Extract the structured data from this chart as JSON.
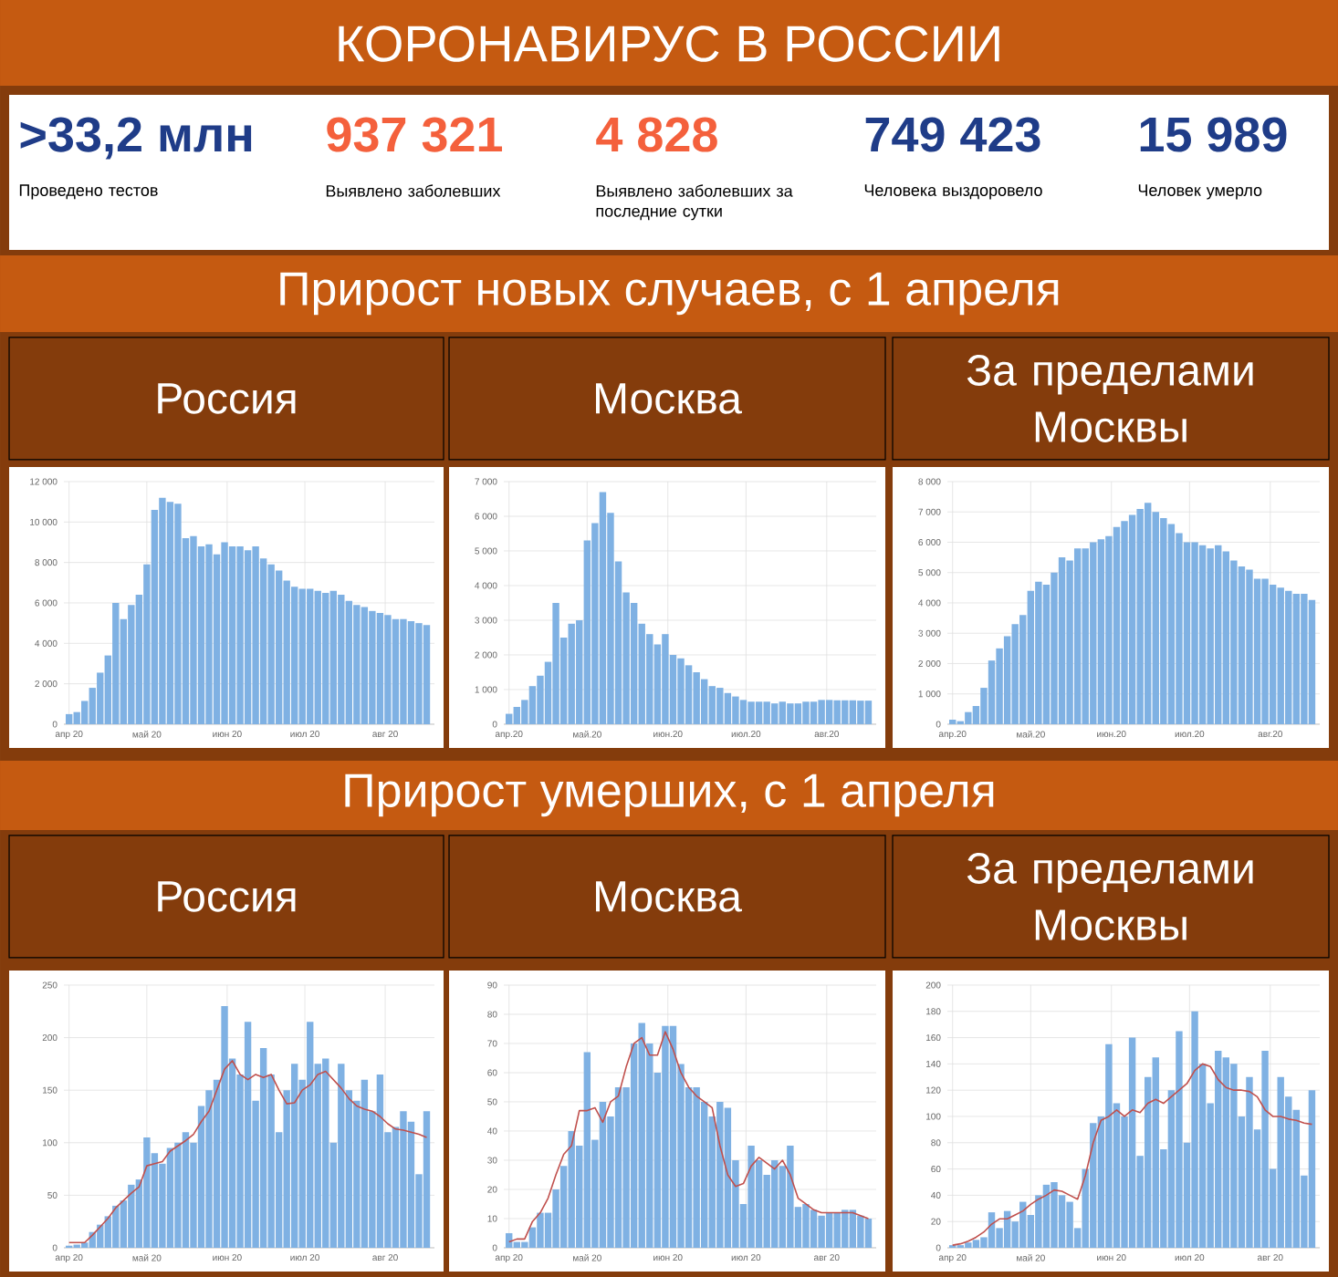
{
  "chart_data": [
    {
      "type": "other",
      "title": "КОРОНАВИРУС В РОССИИ",
      "categories": [
        "Проведено тестов",
        "Выявлено заболевших",
        "Выявлено заболевших за последние сутки",
        "Человека выздоровело",
        "Человек умерло"
      ],
      "value_labels": [
        ">33,2 млн",
        "937 321",
        "4 828",
        "749 423",
        "15 989"
      ],
      "colors": [
        "#1f3c88",
        "#f4603c",
        "#f4603c",
        "#1f3c88",
        "#1f3c88"
      ]
    },
    {
      "type": "bar",
      "title": "Россия",
      "subtitle": "Прирост новых случаев, с 1 апреля",
      "grid": true,
      "x": [
        "2020-04-01",
        "2020-04-04",
        "2020-04-07",
        "2020-04-10",
        "2020-04-13",
        "2020-04-16",
        "2020-04-19",
        "2020-04-22",
        "2020-04-25",
        "2020-04-28",
        "2020-05-01",
        "2020-05-04",
        "2020-05-07",
        "2020-05-10",
        "2020-05-13",
        "2020-05-16",
        "2020-05-19",
        "2020-05-22",
        "2020-05-25",
        "2020-05-28",
        "2020-05-31",
        "2020-06-03",
        "2020-06-06",
        "2020-06-09",
        "2020-06-12",
        "2020-06-15",
        "2020-06-18",
        "2020-06-21",
        "2020-06-24",
        "2020-06-27",
        "2020-06-30",
        "2020-07-03",
        "2020-07-06",
        "2020-07-09",
        "2020-07-12",
        "2020-07-15",
        "2020-07-18",
        "2020-07-21",
        "2020-07-24",
        "2020-07-27",
        "2020-07-30",
        "2020-08-02",
        "2020-08-05",
        "2020-08-08",
        "2020-08-11",
        "2020-08-14",
        "2020-08-17"
      ],
      "xlim": [
        "2020-03-30",
        "2020-08-20"
      ],
      "xticks": [
        {
          "value": "2020-04-01",
          "label": "апр 20"
        },
        {
          "value": "2020-05-01",
          "label": "май 20"
        },
        {
          "value": "2020-06-01",
          "label": "июн 20"
        },
        {
          "value": "2020-07-01",
          "label": "июл 20"
        },
        {
          "value": "2020-08-01",
          "label": "авг 20"
        }
      ],
      "ylim": [
        0,
        12000
      ],
      "yticks": [
        0,
        {
          "value": 2000,
          "label": "2 000"
        },
        {
          "value": 4000,
          "label": "4 000"
        },
        {
          "value": 6000,
          "label": "6 000"
        },
        {
          "value": 8000,
          "label": "8 000"
        },
        {
          "value": 10000,
          "label": "10 000"
        },
        {
          "value": 12000,
          "label": "12 000"
        }
      ],
      "series": [
        {
          "type": "bar",
          "color": "#7fb1e3",
          "values": [
            500,
            600,
            1150,
            1800,
            2550,
            3400,
            6000,
            5200,
            5900,
            6400,
            7900,
            10600,
            11200,
            11000,
            10900,
            9200,
            9300,
            8800,
            8900,
            8400,
            9000,
            8800,
            8800,
            8600,
            8800,
            8200,
            7900,
            7600,
            7100,
            6800,
            6700,
            6700,
            6600,
            6500,
            6600,
            6400,
            6100,
            5900,
            5800,
            5600,
            5500,
            5400,
            5200,
            5200,
            5100,
            5000,
            4900
          ]
        }
      ]
    },
    {
      "type": "bar",
      "title": "Москва",
      "grid": true,
      "x": [
        "2020-04-01",
        "2020-04-04",
        "2020-04-07",
        "2020-04-10",
        "2020-04-13",
        "2020-04-16",
        "2020-04-19",
        "2020-04-22",
        "2020-04-25",
        "2020-04-28",
        "2020-05-01",
        "2020-05-04",
        "2020-05-07",
        "2020-05-10",
        "2020-05-13",
        "2020-05-16",
        "2020-05-19",
        "2020-05-22",
        "2020-05-25",
        "2020-05-28",
        "2020-05-31",
        "2020-06-03",
        "2020-06-06",
        "2020-06-09",
        "2020-06-12",
        "2020-06-15",
        "2020-06-18",
        "2020-06-21",
        "2020-06-24",
        "2020-06-27",
        "2020-06-30",
        "2020-07-03",
        "2020-07-06",
        "2020-07-09",
        "2020-07-12",
        "2020-07-15",
        "2020-07-18",
        "2020-07-21",
        "2020-07-24",
        "2020-07-27",
        "2020-07-30",
        "2020-08-02",
        "2020-08-05",
        "2020-08-08",
        "2020-08-11",
        "2020-08-14",
        "2020-08-17"
      ],
      "xlim": [
        "2020-03-30",
        "2020-08-20"
      ],
      "xticks": [
        {
          "value": "2020-04-01",
          "label": "апр.20"
        },
        {
          "value": "2020-05-01",
          "label": "май.20"
        },
        {
          "value": "2020-06-01",
          "label": "июн.20"
        },
        {
          "value": "2020-07-01",
          "label": "июл.20"
        },
        {
          "value": "2020-08-01",
          "label": "авг.20"
        }
      ],
      "ylim": [
        0,
        7000
      ],
      "yticks": [
        0,
        {
          "value": 1000,
          "label": "1 000"
        },
        {
          "value": 2000,
          "label": "2 000"
        },
        {
          "value": 3000,
          "label": "3 000"
        },
        {
          "value": 4000,
          "label": "4 000"
        },
        {
          "value": 5000,
          "label": "5 000"
        },
        {
          "value": 6000,
          "label": "6 000"
        },
        {
          "value": 7000,
          "label": "7 000"
        }
      ],
      "series": [
        {
          "type": "bar",
          "color": "#7fb1e3",
          "values": [
            300,
            500,
            700,
            1100,
            1400,
            1800,
            3500,
            2500,
            2900,
            3000,
            5300,
            5800,
            6700,
            6100,
            4700,
            3800,
            3500,
            2900,
            2600,
            2300,
            2600,
            2000,
            1900,
            1700,
            1500,
            1300,
            1100,
            1050,
            900,
            800,
            700,
            650,
            650,
            650,
            600,
            650,
            600,
            600,
            650,
            650,
            700,
            700,
            690,
            690,
            690,
            680,
            680
          ]
        }
      ]
    },
    {
      "type": "bar",
      "title": "За пределами Москвы",
      "grid": true,
      "x": [
        "2020-04-01",
        "2020-04-04",
        "2020-04-07",
        "2020-04-10",
        "2020-04-13",
        "2020-04-16",
        "2020-04-19",
        "2020-04-22",
        "2020-04-25",
        "2020-04-28",
        "2020-05-01",
        "2020-05-04",
        "2020-05-07",
        "2020-05-10",
        "2020-05-13",
        "2020-05-16",
        "2020-05-19",
        "2020-05-22",
        "2020-05-25",
        "2020-05-28",
        "2020-05-31",
        "2020-06-03",
        "2020-06-06",
        "2020-06-09",
        "2020-06-12",
        "2020-06-15",
        "2020-06-18",
        "2020-06-21",
        "2020-06-24",
        "2020-06-27",
        "2020-06-30",
        "2020-07-03",
        "2020-07-06",
        "2020-07-09",
        "2020-07-12",
        "2020-07-15",
        "2020-07-18",
        "2020-07-21",
        "2020-07-24",
        "2020-07-27",
        "2020-07-30",
        "2020-08-02",
        "2020-08-05",
        "2020-08-08",
        "2020-08-11",
        "2020-08-14",
        "2020-08-17"
      ],
      "xlim": [
        "2020-03-30",
        "2020-08-20"
      ],
      "xticks": [
        {
          "value": "2020-04-01",
          "label": "апр.20"
        },
        {
          "value": "2020-05-01",
          "label": "май.20"
        },
        {
          "value": "2020-06-01",
          "label": "июн.20"
        },
        {
          "value": "2020-07-01",
          "label": "июл.20"
        },
        {
          "value": "2020-08-01",
          "label": "авг.20"
        }
      ],
      "ylim": [
        0,
        8000
      ],
      "yticks": [
        0,
        {
          "value": 1000,
          "label": "1 000"
        },
        {
          "value": 2000,
          "label": "2 000"
        },
        {
          "value": 3000,
          "label": "3 000"
        },
        {
          "value": 4000,
          "label": "4 000"
        },
        {
          "value": 5000,
          "label": "5 000"
        },
        {
          "value": 6000,
          "label": "6 000"
        },
        {
          "value": 7000,
          "label": "7 000"
        },
        {
          "value": 8000,
          "label": "8 000"
        }
      ],
      "series": [
        {
          "type": "bar",
          "color": "#7fb1e3",
          "values": [
            150,
            100,
            400,
            600,
            1200,
            2100,
            2500,
            2900,
            3300,
            3600,
            4400,
            4700,
            4600,
            5000,
            5500,
            5400,
            5800,
            5800,
            6000,
            6100,
            6200,
            6500,
            6700,
            6900,
            7100,
            7300,
            7000,
            6800,
            6600,
            6300,
            6000,
            6000,
            5900,
            5800,
            5900,
            5700,
            5400,
            5200,
            5100,
            4800,
            4800,
            4600,
            4500,
            4400,
            4300,
            4300,
            4100
          ]
        }
      ]
    },
    {
      "type": "bar",
      "title": "Россия",
      "subtitle": "Прирост умерших, с 1 апреля",
      "grid": true,
      "x": [
        "2020-04-01",
        "2020-04-04",
        "2020-04-07",
        "2020-04-10",
        "2020-04-13",
        "2020-04-16",
        "2020-04-19",
        "2020-04-22",
        "2020-04-25",
        "2020-04-28",
        "2020-05-01",
        "2020-05-04",
        "2020-05-07",
        "2020-05-10",
        "2020-05-13",
        "2020-05-16",
        "2020-05-19",
        "2020-05-22",
        "2020-05-25",
        "2020-05-28",
        "2020-05-31",
        "2020-06-03",
        "2020-06-06",
        "2020-06-09",
        "2020-06-12",
        "2020-06-15",
        "2020-06-18",
        "2020-06-21",
        "2020-06-24",
        "2020-06-27",
        "2020-06-30",
        "2020-07-03",
        "2020-07-06",
        "2020-07-09",
        "2020-07-12",
        "2020-07-15",
        "2020-07-18",
        "2020-07-21",
        "2020-07-24",
        "2020-07-27",
        "2020-07-30",
        "2020-08-02",
        "2020-08-05",
        "2020-08-08",
        "2020-08-11",
        "2020-08-14",
        "2020-08-17"
      ],
      "xlim": [
        "2020-03-30",
        "2020-08-20"
      ],
      "xticks": [
        {
          "value": "2020-04-01",
          "label": "апр 20"
        },
        {
          "value": "2020-05-01",
          "label": "май 20"
        },
        {
          "value": "2020-06-01",
          "label": "июн 20"
        },
        {
          "value": "2020-07-01",
          "label": "июл 20"
        },
        {
          "value": "2020-08-01",
          "label": "авг 20"
        }
      ],
      "ylim": [
        0,
        250
      ],
      "yticks": [
        0,
        50,
        100,
        150,
        200,
        250
      ],
      "series": [
        {
          "type": "bar",
          "color": "#7fb1e3",
          "values": [
            2,
            3,
            5,
            15,
            22,
            30,
            40,
            45,
            60,
            65,
            105,
            90,
            80,
            95,
            100,
            110,
            100,
            135,
            150,
            160,
            230,
            180,
            165,
            215,
            140,
            190,
            165,
            110,
            150,
            175,
            160,
            215,
            175,
            180,
            100,
            175,
            150,
            140,
            160,
            130,
            165,
            110,
            115,
            130,
            120,
            70,
            130
          ]
        },
        {
          "type": "line",
          "color": "#c0504d",
          "values": [
            5,
            5,
            5,
            12,
            20,
            28,
            38,
            45,
            52,
            58,
            78,
            80,
            82,
            92,
            97,
            102,
            108,
            120,
            130,
            150,
            170,
            178,
            165,
            160,
            165,
            162,
            165,
            150,
            137,
            138,
            150,
            155,
            165,
            168,
            160,
            152,
            142,
            135,
            132,
            130,
            125,
            118,
            113,
            112,
            110,
            108,
            105
          ]
        }
      ]
    },
    {
      "type": "bar",
      "title": "Москва",
      "grid": true,
      "x": [
        "2020-04-01",
        "2020-04-04",
        "2020-04-07",
        "2020-04-10",
        "2020-04-13",
        "2020-04-16",
        "2020-04-19",
        "2020-04-22",
        "2020-04-25",
        "2020-04-28",
        "2020-05-01",
        "2020-05-04",
        "2020-05-07",
        "2020-05-10",
        "2020-05-13",
        "2020-05-16",
        "2020-05-19",
        "2020-05-22",
        "2020-05-25",
        "2020-05-28",
        "2020-05-31",
        "2020-06-03",
        "2020-06-06",
        "2020-06-09",
        "2020-06-12",
        "2020-06-15",
        "2020-06-18",
        "2020-06-21",
        "2020-06-24",
        "2020-06-27",
        "2020-06-30",
        "2020-07-03",
        "2020-07-06",
        "2020-07-09",
        "2020-07-12",
        "2020-07-15",
        "2020-07-18",
        "2020-07-21",
        "2020-07-24",
        "2020-07-27",
        "2020-07-30",
        "2020-08-02",
        "2020-08-05",
        "2020-08-08",
        "2020-08-11",
        "2020-08-14",
        "2020-08-17"
      ],
      "xlim": [
        "2020-03-30",
        "2020-08-20"
      ],
      "xticks": [
        {
          "value": "2020-04-01",
          "label": "апр 20"
        },
        {
          "value": "2020-05-01",
          "label": "май 20"
        },
        {
          "value": "2020-06-01",
          "label": "июн 20"
        },
        {
          "value": "2020-07-01",
          "label": "июл 20"
        },
        {
          "value": "2020-08-01",
          "label": "авг 20"
        }
      ],
      "ylim": [
        0,
        90
      ],
      "yticks": [
        0,
        10,
        20,
        30,
        40,
        50,
        60,
        70,
        80,
        90
      ],
      "series": [
        {
          "type": "bar",
          "color": "#7fb1e3",
          "values": [
            5,
            2,
            2,
            7,
            12,
            12,
            20,
            28,
            40,
            35,
            67,
            37,
            50,
            45,
            55,
            55,
            70,
            77,
            70,
            60,
            76,
            76,
            63,
            55,
            55,
            50,
            45,
            50,
            48,
            30,
            15,
            35,
            30,
            25,
            30,
            28,
            35,
            14,
            15,
            13,
            11,
            12,
            12,
            13,
            13,
            11,
            10
          ]
        },
        {
          "type": "line",
          "color": "#c0504d",
          "values": [
            2,
            3,
            3,
            9,
            12,
            17,
            25,
            32,
            35,
            47,
            47,
            48,
            43,
            50,
            52,
            62,
            70,
            72,
            66,
            66,
            74,
            68,
            60,
            55,
            52,
            50,
            48,
            35,
            25,
            21,
            22,
            28,
            31,
            29,
            27,
            30,
            25,
            17,
            15,
            13,
            12,
            12,
            12,
            12,
            12,
            11,
            10
          ]
        }
      ]
    },
    {
      "type": "bar",
      "title": "За пределами Москвы",
      "grid": true,
      "x": [
        "2020-04-01",
        "2020-04-04",
        "2020-04-07",
        "2020-04-10",
        "2020-04-13",
        "2020-04-16",
        "2020-04-19",
        "2020-04-22",
        "2020-04-25",
        "2020-04-28",
        "2020-05-01",
        "2020-05-04",
        "2020-05-07",
        "2020-05-10",
        "2020-05-13",
        "2020-05-16",
        "2020-05-19",
        "2020-05-22",
        "2020-05-25",
        "2020-05-28",
        "2020-05-31",
        "2020-06-03",
        "2020-06-06",
        "2020-06-09",
        "2020-06-12",
        "2020-06-15",
        "2020-06-18",
        "2020-06-21",
        "2020-06-24",
        "2020-06-27",
        "2020-06-30",
        "2020-07-03",
        "2020-07-06",
        "2020-07-09",
        "2020-07-12",
        "2020-07-15",
        "2020-07-18",
        "2020-07-21",
        "2020-07-24",
        "2020-07-27",
        "2020-07-30",
        "2020-08-02",
        "2020-08-05",
        "2020-08-08",
        "2020-08-11",
        "2020-08-14",
        "2020-08-17"
      ],
      "xlim": [
        "2020-03-30",
        "2020-08-20"
      ],
      "xticks": [
        {
          "value": "2020-04-01",
          "label": "апр 20"
        },
        {
          "value": "2020-05-01",
          "label": "май 20"
        },
        {
          "value": "2020-06-01",
          "label": "июн 20"
        },
        {
          "value": "2020-07-01",
          "label": "июл 20"
        },
        {
          "value": "2020-08-01",
          "label": "авг 20"
        }
      ],
      "ylim": [
        0,
        200
      ],
      "yticks": [
        0,
        20,
        40,
        60,
        80,
        100,
        120,
        140,
        160,
        180,
        200
      ],
      "series": [
        {
          "type": "bar",
          "color": "#7fb1e3",
          "values": [
            2,
            2,
            4,
            6,
            8,
            27,
            15,
            28,
            20,
            35,
            25,
            40,
            48,
            50,
            40,
            35,
            15,
            60,
            95,
            100,
            155,
            110,
            100,
            160,
            70,
            130,
            145,
            75,
            120,
            165,
            80,
            180,
            140,
            110,
            150,
            145,
            140,
            100,
            130,
            90,
            150,
            60,
            130,
            115,
            105,
            55,
            120
          ]
        },
        {
          "type": "line",
          "color": "#c0504d",
          "values": [
            2,
            3,
            5,
            8,
            12,
            18,
            22,
            22,
            25,
            28,
            33,
            37,
            40,
            44,
            43,
            40,
            37,
            55,
            80,
            97,
            100,
            105,
            100,
            105,
            103,
            110,
            113,
            110,
            115,
            120,
            125,
            135,
            140,
            138,
            128,
            122,
            120,
            120,
            119,
            115,
            105,
            100,
            100,
            98,
            97,
            95,
            94
          ]
        }
      ]
    }
  ]
}
